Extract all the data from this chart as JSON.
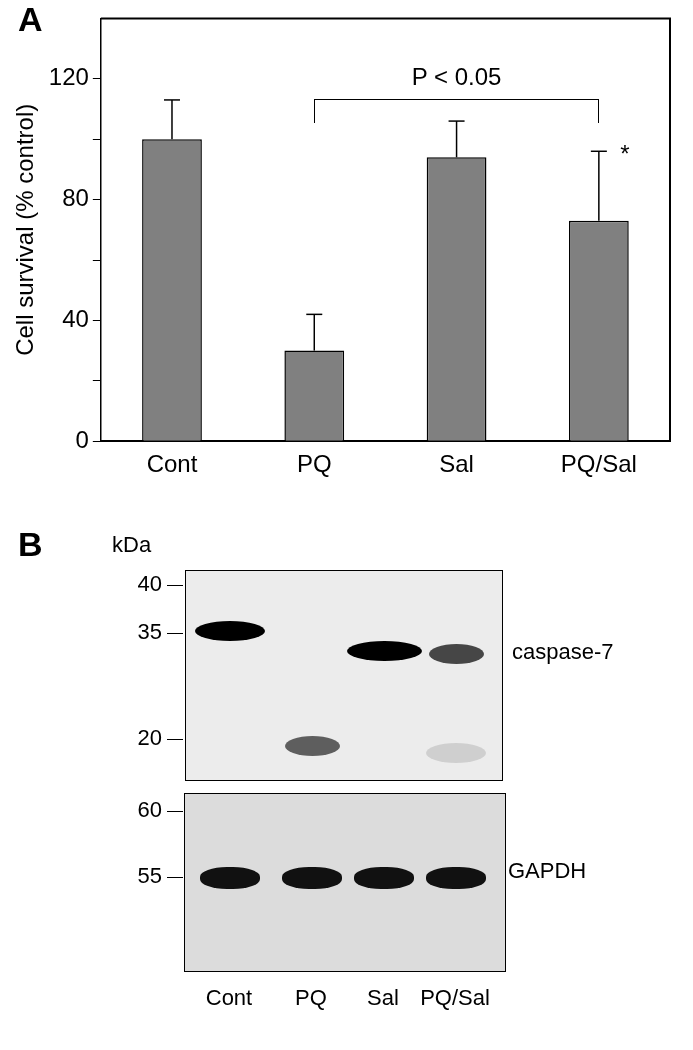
{
  "chart_data": [
    {
      "type": "bar",
      "title": "A",
      "ylabel": "Cell survival (% control)",
      "categories": [
        "Cont",
        "PQ",
        "Sal",
        "PQ/Sal"
      ],
      "values": [
        100,
        30,
        94,
        73
      ],
      "color": "#808080",
      "errors": [
        [
          100,
          113
        ],
        [
          30,
          42
        ],
        [
          94,
          106
        ],
        [
          73,
          96
        ]
      ],
      "ylim": [
        0,
        140
      ],
      "yticks": [
        0,
        {
          "value": 20,
          "label": null
        },
        40,
        {
          "value": 60,
          "label": null
        },
        80,
        {
          "value": 100,
          "label": null
        },
        120
      ],
      "grid": false,
      "annotations": [
        "P < 0.05",
        {
          "text": "*",
          "x": "PQ/Sal",
          "y": 96
        }
      ]
    },
    {
      "type": "other",
      "title": "B",
      "categories": [
        "Cont",
        "PQ",
        "Sal",
        "PQ/Sal"
      ],
      "annotations": [
        "kDa",
        "40",
        "35",
        "20",
        "60",
        "55",
        "caspase-7",
        "GAPDH"
      ]
    }
  ]
}
